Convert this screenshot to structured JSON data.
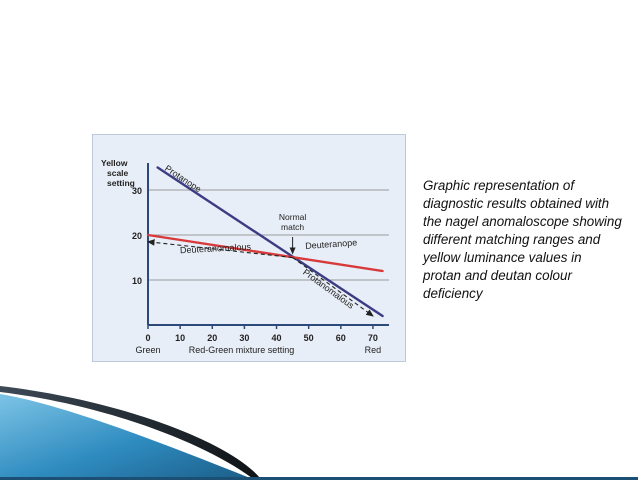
{
  "slide": {
    "caption": "Graphic representation of diagnostic results obtained with the nagel anomaloscope showing different matching ranges and yellow luminance values in protan and deutan colour deficiency"
  },
  "chart_data": {
    "type": "line",
    "ylabel": "Yellow scale setting",
    "xlabel": "Red-Green mixture setting",
    "x_end_labels": {
      "left": "Green",
      "right": "Red"
    },
    "xlim": [
      0,
      75
    ],
    "ylim": [
      0,
      40
    ],
    "xticks": [
      "0",
      "10",
      "20",
      "30",
      "40",
      "50",
      "60",
      "70"
    ],
    "yticks": [
      "10",
      "20",
      "30"
    ],
    "grid": true,
    "series": [
      {
        "name": "Protanope",
        "color": "#3c3c84",
        "x": [
          3,
          73
        ],
        "y": [
          35,
          2
        ]
      },
      {
        "name": "Deuteranope",
        "color": "#d73a3a",
        "x": [
          0,
          73
        ],
        "y": [
          20,
          12
        ]
      }
    ],
    "arrows": [
      {
        "name": "Deuteranomalous",
        "x": [
          45,
          0
        ],
        "y": [
          15,
          18.5
        ]
      },
      {
        "name": "Protanomalous",
        "x": [
          45,
          70
        ],
        "y": [
          15,
          2
        ]
      }
    ],
    "annotations": [
      {
        "label": "Normal match",
        "x": 45,
        "y": 15
      }
    ],
    "colors": {
      "axis": "#2b4a7a",
      "grid": "#9a9a9a",
      "panel_bg": "#e8eef7"
    }
  }
}
